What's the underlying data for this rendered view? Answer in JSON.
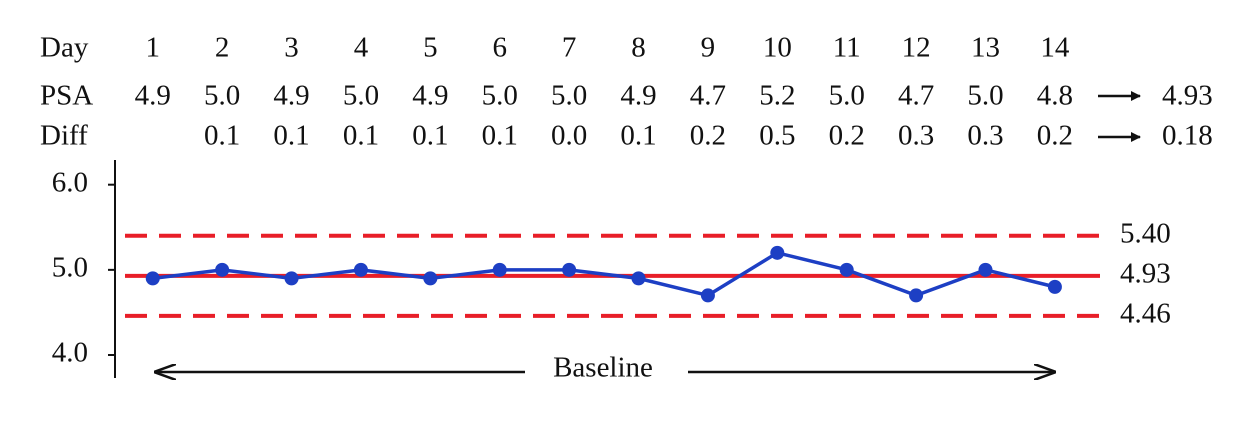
{
  "chart_data": {
    "type": "line",
    "row_labels": [
      "Day",
      "PSA",
      "Diff"
    ],
    "x": [
      1,
      2,
      3,
      4,
      5,
      6,
      7,
      8,
      9,
      10,
      11,
      12,
      13,
      14
    ],
    "xlim": [
      0.6,
      14.65
    ],
    "series": [
      {
        "name": "PSA",
        "color": "#1d3fc4",
        "values": [
          4.9,
          5.0,
          4.9,
          5.0,
          4.9,
          5.0,
          5.0,
          4.9,
          4.7,
          5.2,
          5.0,
          4.7,
          5.0,
          4.8
        ],
        "value_labels": [
          "4.9",
          "5.0",
          "4.9",
          "5.0",
          "4.9",
          "5.0",
          "5.0",
          "4.9",
          "4.7",
          "5.2",
          "5.0",
          "4.7",
          "5.0",
          "4.8"
        ]
      },
      {
        "name": "Diff",
        "values": [
          null,
          0.1,
          0.1,
          0.1,
          0.1,
          0.1,
          0.0,
          0.1,
          0.2,
          0.5,
          0.2,
          0.3,
          0.3,
          0.2
        ],
        "value_labels": [
          null,
          "0.1",
          "0.1",
          "0.1",
          "0.1",
          "0.1",
          "0.0",
          "0.1",
          "0.2",
          "0.5",
          "0.2",
          "0.3",
          "0.3",
          "0.2"
        ]
      }
    ],
    "mean_psa": {
      "value": 4.93,
      "label": "4.93"
    },
    "mean_diff": {
      "value": 0.18,
      "label": "0.18"
    },
    "control_lines": [
      {
        "value": 5.4,
        "label": "5.40",
        "style": "dashed"
      },
      {
        "value": 4.93,
        "label": "4.93",
        "style": "solid"
      },
      {
        "value": 4.46,
        "label": "4.46",
        "style": "dashed"
      }
    ],
    "control_color": "#e81e28",
    "ylim": [
      3.73,
      6.29
    ],
    "yticks": [
      {
        "value": 6.0,
        "label": "6.0"
      },
      {
        "value": 5.0,
        "label": "5.0"
      },
      {
        "value": 4.0,
        "label": "4.0"
      }
    ],
    "annotation": "Baseline"
  }
}
